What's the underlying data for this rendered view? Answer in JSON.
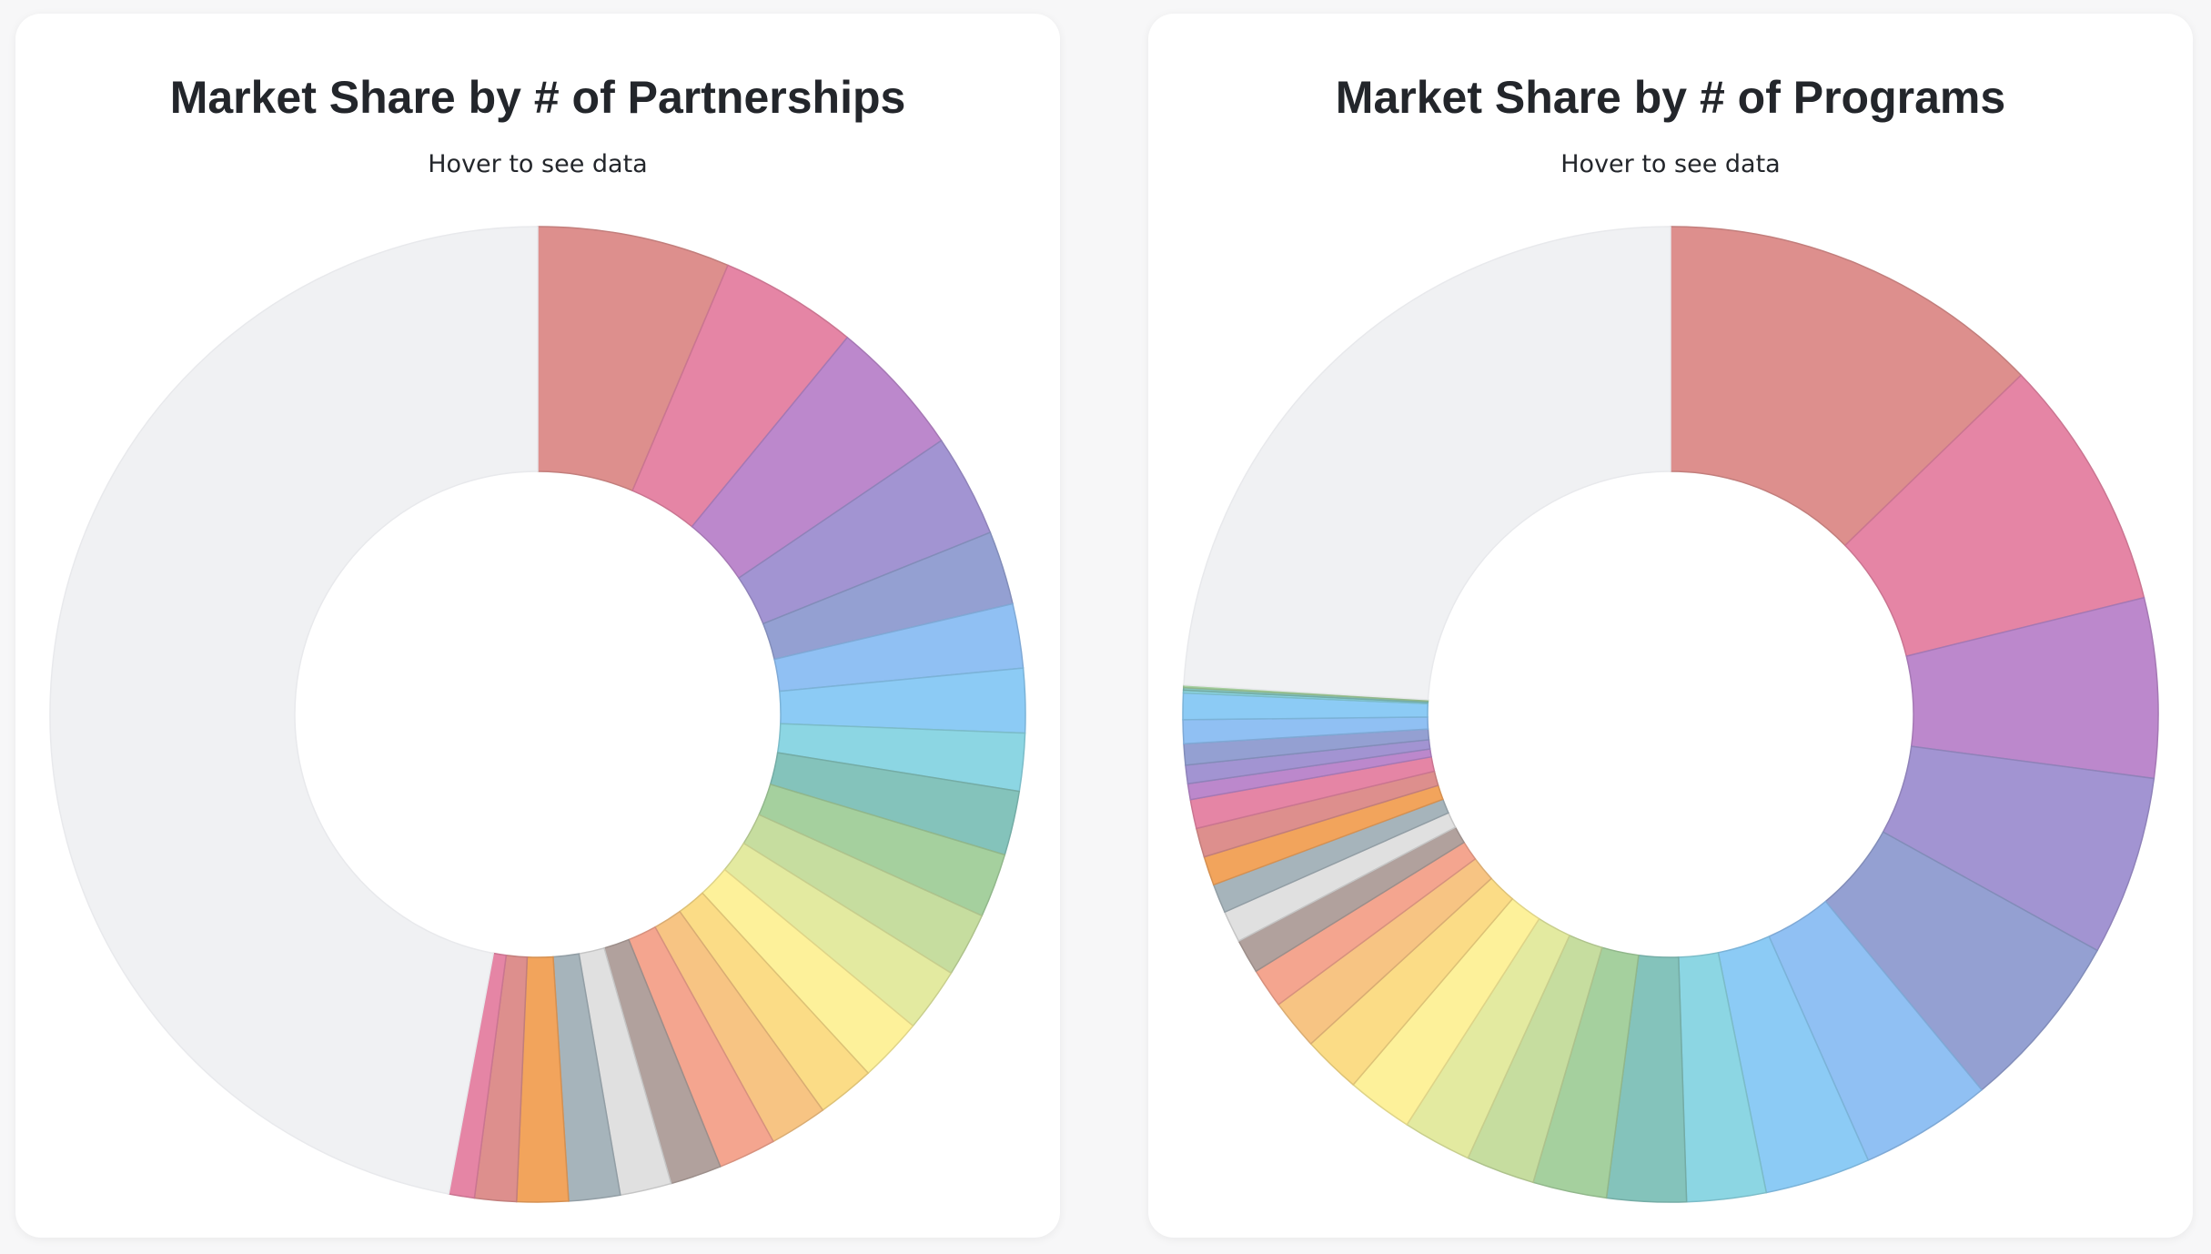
{
  "chart_data": [
    {
      "type": "pie",
      "title": "Market Share by # of Partnerships",
      "subtitle": "Hover to see data",
      "donut": true,
      "grid": false,
      "legend": "none",
      "values": [
        6.0,
        4.3,
        4.3,
        3.2,
        2.3,
        2.0,
        2.0,
        1.8,
        2.0,
        2.0,
        2.0,
        2.0,
        2.0,
        1.8,
        1.8,
        1.8,
        1.6,
        1.6,
        1.6,
        1.6,
        1.3,
        0.8,
        44.3
      ],
      "colors": [
        "#dd8f8d",
        "#e585a5",
        "#bc88cc",
        "#a294d2",
        "#94a0d2",
        "#90c0f3",
        "#8ccbf5",
        "#8cd6e3",
        "#84c3bb",
        "#a5d09e",
        "#c6dd9f",
        "#e3eaa0",
        "#fdf19a",
        "#fbdc86",
        "#f7c483",
        "#f4a58f",
        "#b1a19d",
        "#e0e0e0",
        "#a6b4bb",
        "#f2a45c",
        "#f0f1f3"
      ]
    },
    {
      "type": "pie",
      "title": "Market Share by # of Programs",
      "subtitle": "Hover to see data",
      "donut": true,
      "grid": false,
      "legend": "none",
      "values": [
        14.6,
        9.6,
        6.8,
        6.8,
        6.8,
        5.0,
        4.0,
        3.0,
        3.0,
        2.8,
        2.6,
        2.6,
        2.5,
        2.2,
        1.9,
        1.5,
        1.3,
        1.2,
        1.1,
        1.1,
        1.1,
        1.1,
        0.6,
        0.7,
        0.8,
        0.9,
        1.0,
        0.1,
        0.1,
        0.1,
        27.5
      ],
      "colors": [
        "#dd8f8d",
        "#e585a5",
        "#bc88cc",
        "#a294d2",
        "#94a0d2",
        "#90c0f3",
        "#8ccbf5",
        "#8cd6e3",
        "#84c3bb",
        "#a5d09e",
        "#c6dd9f",
        "#e3eaa0",
        "#fdf19a",
        "#fbdc86",
        "#f7c483",
        "#f4a58f",
        "#b1a19d",
        "#e0e0e0",
        "#a6b4bb",
        "#f2a45c",
        "#f0f1f3"
      ]
    }
  ]
}
